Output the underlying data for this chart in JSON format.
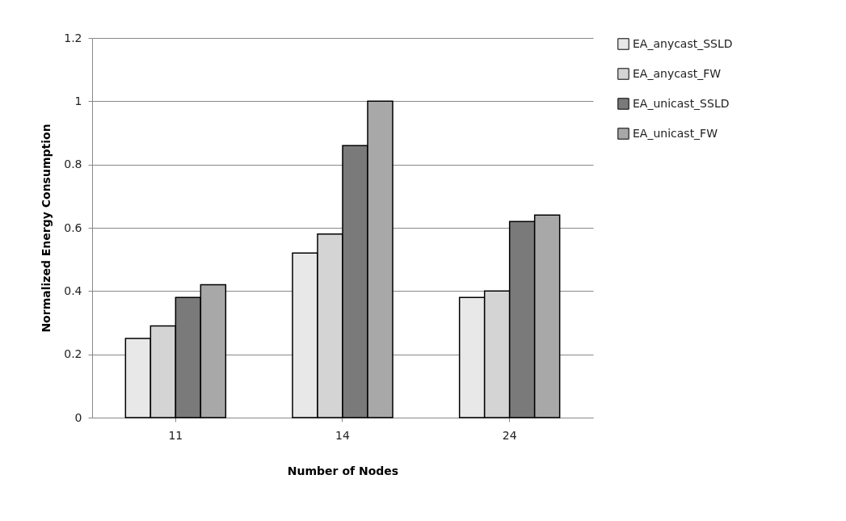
{
  "chart_data": {
    "type": "bar",
    "xlabel": "Number of Nodes",
    "ylabel": "Normalized Energy Consumption",
    "categories": [
      "11",
      "14",
      "24"
    ],
    "series": [
      {
        "name": "EA_anycast_SSLD",
        "color": "#e8e8e8",
        "values": [
          0.25,
          0.52,
          0.38
        ]
      },
      {
        "name": "EA_anycast_FW",
        "color": "#d4d4d4",
        "values": [
          0.29,
          0.58,
          0.4
        ]
      },
      {
        "name": "EA_unicast_SSLD",
        "color": "#7a7a7a",
        "values": [
          0.38,
          0.86,
          0.62
        ]
      },
      {
        "name": "EA_unicast_FW",
        "color": "#a8a8a8",
        "values": [
          0.42,
          1.0,
          0.64
        ]
      }
    ],
    "ylim": [
      0,
      1.2
    ],
    "yticks": [
      0,
      0.2,
      0.4,
      0.6,
      0.8,
      1,
      1.2
    ],
    "grid": "y",
    "legend": "right"
  }
}
